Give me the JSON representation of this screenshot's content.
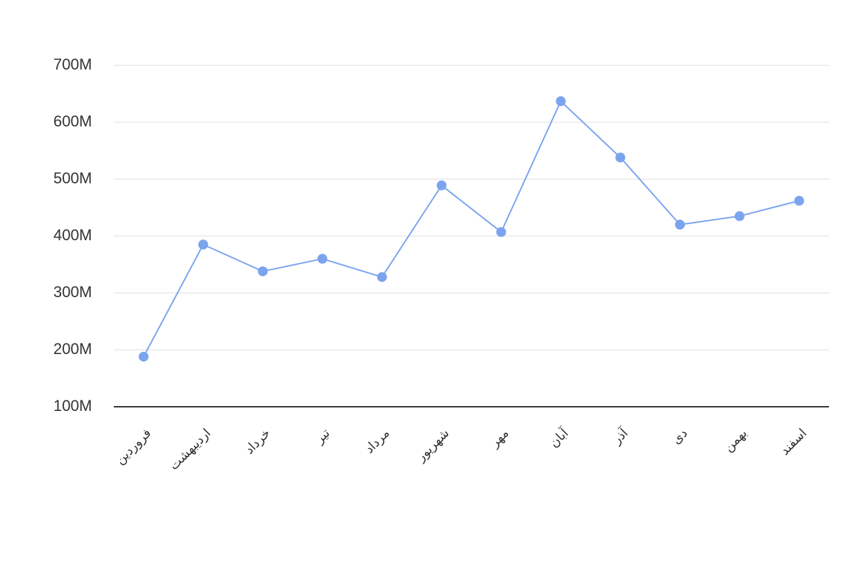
{
  "chart_data": {
    "type": "line",
    "categories": [
      "فروردین",
      "اردیبهشت",
      "خرداد",
      "تیر",
      "مرداد",
      "شهریور",
      "مهر",
      "آبان",
      "آذر",
      "دی",
      "بهمن",
      "اسفند"
    ],
    "values": [
      188000000,
      385000000,
      338000000,
      360000000,
      328000000,
      489000000,
      407000000,
      637000000,
      538000000,
      420000000,
      435000000,
      462000000
    ],
    "color": "#7ba4ee",
    "ylim": [
      100000000,
      700000000
    ],
    "yticks": [
      {
        "value": 100000000,
        "label": "100M"
      },
      {
        "value": 200000000,
        "label": "200M"
      },
      {
        "value": 300000000,
        "label": "300M"
      },
      {
        "value": 400000000,
        "label": "400M"
      },
      {
        "value": 500000000,
        "label": "500M"
      },
      {
        "value": 600000000,
        "label": "600M"
      },
      {
        "value": 700000000,
        "label": "700M"
      }
    ],
    "grid": true
  }
}
